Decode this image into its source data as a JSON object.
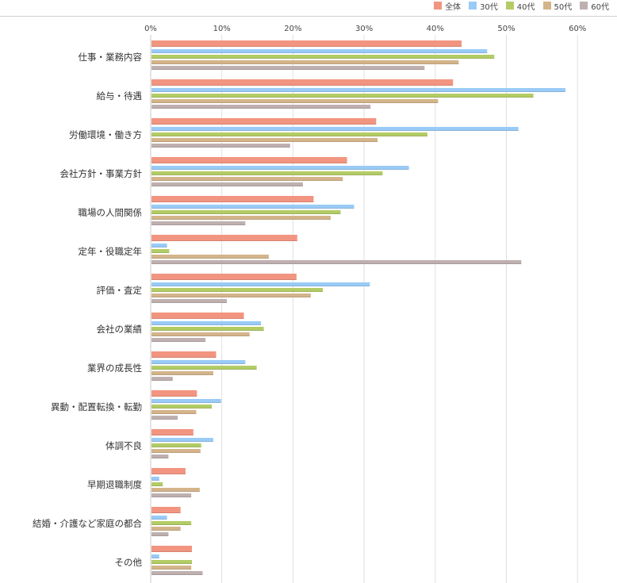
{
  "chart_data": {
    "type": "bar",
    "orientation": "horizontal",
    "title": "",
    "xlabel": "",
    "ylabel": "",
    "xlim": [
      0,
      60
    ],
    "x_ticks": [
      "0%",
      "10%",
      "20%",
      "30%",
      "40%",
      "50%",
      "60%"
    ],
    "x_tick_values": [
      0,
      10,
      20,
      30,
      40,
      50,
      60
    ],
    "grid": true,
    "legend_position": "top-right",
    "categories": [
      "仕事・業務内容",
      "給与・待遇",
      "労働環境・働き方",
      "会社方針・事業方針",
      "職場の人間関係",
      "定年・役職定年",
      "評価・査定",
      "会社の業績",
      "業界の成長性",
      "異動・配置転換・転勤",
      "体調不良",
      "早期退職制度",
      "結婚・介護など家庭の都合",
      "その他"
    ],
    "series": [
      {
        "name": "全体",
        "color": "#f29580",
        "values": [
          43.7,
          42.5,
          31.7,
          27.6,
          22.9,
          20.6,
          20.5,
          13.1,
          9.2,
          6.5,
          6.0,
          4.9,
          4.2,
          5.8
        ]
      },
      {
        "name": "30代",
        "color": "#99cbf7",
        "values": [
          47.3,
          58.3,
          51.7,
          36.3,
          28.6,
          2.3,
          30.8,
          15.5,
          13.3,
          9.9,
          8.8,
          1.2,
          2.3,
          1.2
        ]
      },
      {
        "name": "40代",
        "color": "#b3cc66",
        "values": [
          48.3,
          53.8,
          38.9,
          32.6,
          26.7,
          2.6,
          24.2,
          15.9,
          14.9,
          8.6,
          7.1,
          1.7,
          5.7,
          5.8
        ]
      },
      {
        "name": "50代",
        "color": "#d4b48a",
        "values": [
          43.3,
          40.4,
          31.9,
          27.0,
          25.3,
          16.6,
          22.5,
          13.9,
          8.8,
          6.4,
          7.0,
          6.9,
          4.2,
          5.7
        ]
      },
      {
        "name": "60代",
        "color": "#bfb0b0",
        "values": [
          38.5,
          30.9,
          19.6,
          21.4,
          13.3,
          52.1,
          10.7,
          7.7,
          3.1,
          3.8,
          2.5,
          5.7,
          2.5,
          7.3
        ]
      }
    ]
  }
}
